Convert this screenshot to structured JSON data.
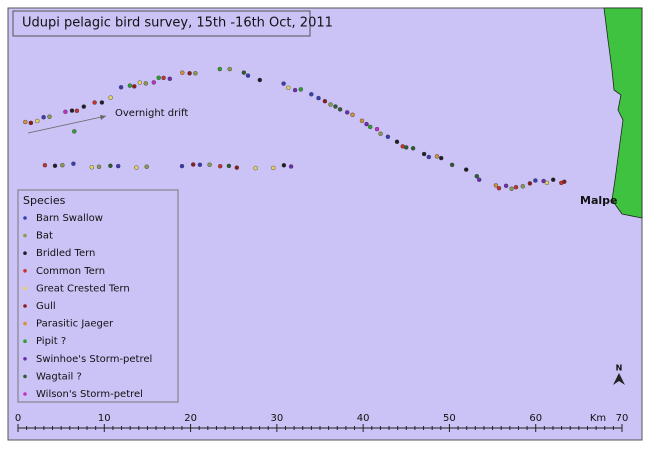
{
  "title": "Udupi pelagic bird survey, 15th -16th Oct, 2011",
  "annotation": "Overnight drift",
  "place": "Malpe",
  "north": "N",
  "legend": {
    "title": "Species",
    "items": [
      {
        "name": "Barn Swallow",
        "color": "#3c3cb4"
      },
      {
        "name": "Bat",
        "color": "#8c9a52"
      },
      {
        "name": "Bridled Tern",
        "color": "#1e1e28"
      },
      {
        "name": "Common Tern",
        "color": "#c83232"
      },
      {
        "name": "Great Crested Tern",
        "color": "#e6d264"
      },
      {
        "name": "Gull",
        "color": "#8c1e1e"
      },
      {
        "name": "Parasitic Jaeger",
        "color": "#d2913c"
      },
      {
        "name": "Pipit ?",
        "color": "#2ea02e"
      },
      {
        "name": "Swinhoe's Storm-petrel",
        "color": "#6e2eb4"
      },
      {
        "name": "Wagtail ?",
        "color": "#2e5e2e"
      },
      {
        "name": "Wilson's Storm-petrel",
        "color": "#c432c4"
      }
    ]
  },
  "scale": {
    "unit": "Km",
    "ticks": [
      0,
      10,
      20,
      30,
      40,
      50,
      60,
      70
    ]
  }
}
